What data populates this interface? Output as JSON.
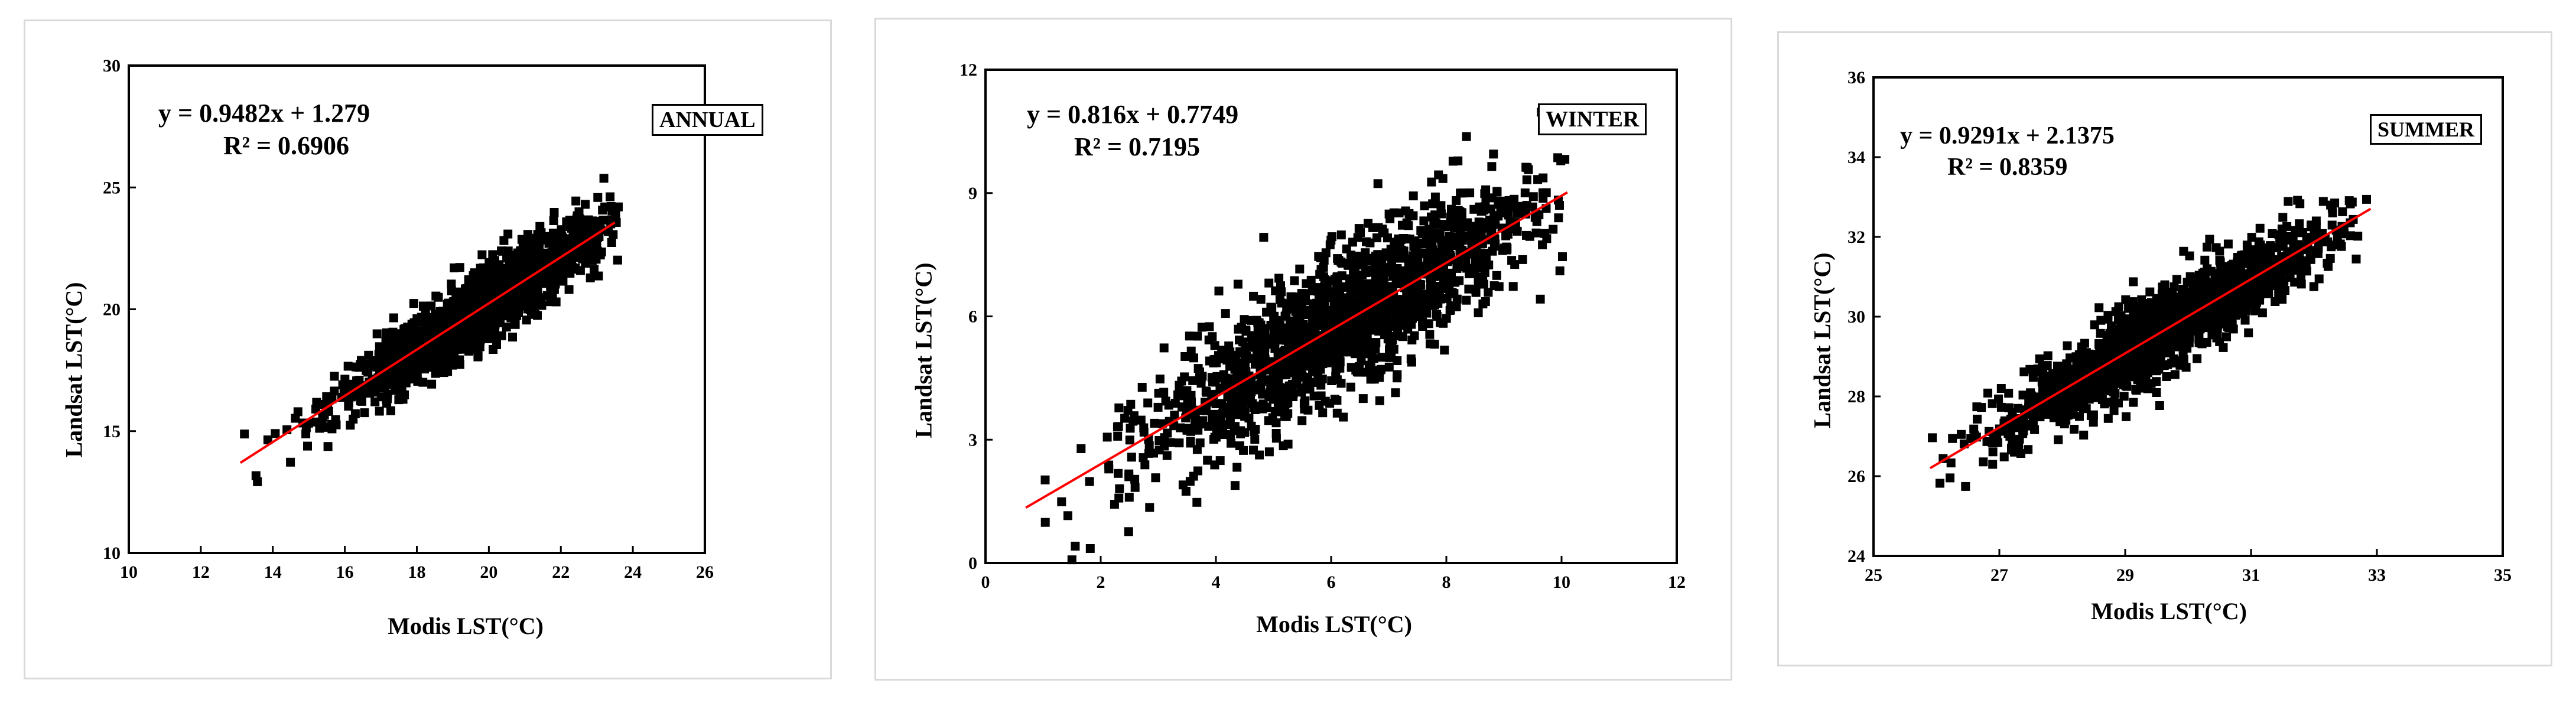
{
  "chart_data": [
    {
      "type": "scatter",
      "season_label": "ANNUAL",
      "equation": "y = 0.9482x + 1.279",
      "r_squared": "R² = 0.6906",
      "xlabel": "Modis LST(°C)",
      "ylabel": "Landsat LST(°C)",
      "xlim": [
        10,
        26
      ],
      "ylim": [
        10,
        30
      ],
      "xticks": [
        10,
        12,
        14,
        16,
        18,
        20,
        22,
        24,
        26
      ],
      "yticks": [
        10,
        15,
        20,
        25,
        30
      ],
      "trendline": {
        "slope": 0.9482,
        "intercept": 1.279,
        "x_range": [
          13.1,
          23.5
        ],
        "color": "#ff0000"
      },
      "point_cloud": {
        "count": 1500,
        "x_center": 19.8,
        "x_spread": 1.9,
        "x_min": 13.0,
        "x_max": 23.6,
        "y_scatter": 0.75
      },
      "marker_color": "#000000",
      "grid": false,
      "legend": "none"
    },
    {
      "type": "scatter",
      "season_label": "WINTER",
      "equation": "y = 0.816x + 0.7749",
      "r_squared": "R² = 0.7195",
      "xlabel": "Modis LST(°C)",
      "ylabel": "Landsat LST(°C)",
      "xlim": [
        0,
        12
      ],
      "ylim": [
        0,
        12
      ],
      "xticks": [
        0,
        2,
        4,
        6,
        8,
        10,
        12
      ],
      "yticks": [
        0,
        3,
        6,
        9,
        12
      ],
      "trendline": {
        "slope": 0.816,
        "intercept": 0.7749,
        "x_range": [
          0.7,
          10.1
        ],
        "color": "#ff0000"
      },
      "point_cloud": {
        "count": 1600,
        "x_center": 6.2,
        "x_spread": 1.7,
        "x_min": 0.7,
        "x_max": 10.1,
        "y_scatter": 0.85
      },
      "marker_color": "#000000",
      "grid": false,
      "legend": "none"
    },
    {
      "type": "scatter",
      "season_label": "SUMMER",
      "equation": "y = 0.9291x + 2.1375",
      "r_squared": "R² = 0.8359",
      "xlabel": "Modis LST(°C)",
      "ylabel": "Landsat LST(°C)",
      "xlim": [
        25,
        35
      ],
      "ylim": [
        24,
        36
      ],
      "xticks": [
        25,
        27,
        29,
        31,
        33,
        35
      ],
      "yticks": [
        24,
        26,
        28,
        30,
        32,
        34,
        36
      ],
      "trendline": {
        "slope": 0.9291,
        "intercept": 2.1375,
        "x_range": [
          25.9,
          32.9
        ],
        "color": "#ff0000"
      },
      "point_cloud": {
        "count": 1600,
        "x_center": 29.6,
        "x_spread": 1.3,
        "x_min": 25.8,
        "x_max": 32.9,
        "y_scatter": 0.5
      },
      "marker_color": "#000000",
      "grid": false,
      "legend": "none"
    }
  ]
}
